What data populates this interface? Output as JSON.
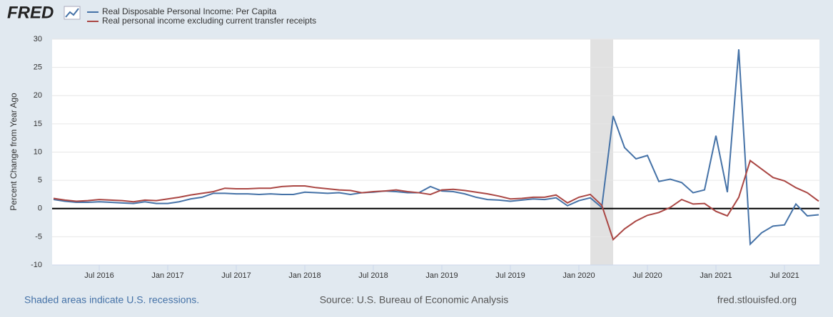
{
  "brand": "FRED",
  "chart_data": {
    "type": "line",
    "y_label": "Percent Change from Year Ago",
    "x": [
      "2016-03",
      "2016-04",
      "2016-05",
      "2016-06",
      "2016-07",
      "2016-08",
      "2016-09",
      "2016-10",
      "2016-11",
      "2016-12",
      "2017-01",
      "2017-02",
      "2017-03",
      "2017-04",
      "2017-05",
      "2017-06",
      "2017-07",
      "2017-08",
      "2017-09",
      "2017-10",
      "2017-11",
      "2017-12",
      "2018-01",
      "2018-02",
      "2018-03",
      "2018-04",
      "2018-05",
      "2018-06",
      "2018-07",
      "2018-08",
      "2018-09",
      "2018-10",
      "2018-11",
      "2018-12",
      "2019-01",
      "2019-02",
      "2019-03",
      "2019-04",
      "2019-05",
      "2019-06",
      "2019-07",
      "2019-08",
      "2019-09",
      "2019-10",
      "2019-11",
      "2019-12",
      "2020-01",
      "2020-02",
      "2020-03",
      "2020-04",
      "2020-05",
      "2020-06",
      "2020-07",
      "2020-08",
      "2020-09",
      "2020-10",
      "2020-11",
      "2020-12",
      "2021-01",
      "2021-02",
      "2021-03",
      "2021-04",
      "2021-05",
      "2021-06",
      "2021-07",
      "2021-08",
      "2021-09",
      "2021-10"
    ],
    "series": [
      {
        "name": "Real Disposable Personal Income: Per Capita",
        "color": "#4572a7",
        "values": [
          1.6,
          1.3,
          1.1,
          1.1,
          1.2,
          1.1,
          1.0,
          0.9,
          1.2,
          0.9,
          0.9,
          1.2,
          1.7,
          2.0,
          2.7,
          2.7,
          2.6,
          2.6,
          2.5,
          2.6,
          2.5,
          2.5,
          2.9,
          2.8,
          2.7,
          2.8,
          2.5,
          2.8,
          2.9,
          3.1,
          3.0,
          2.8,
          2.8,
          3.9,
          3.1,
          3.0,
          2.6,
          2.0,
          1.6,
          1.5,
          1.3,
          1.5,
          1.7,
          1.6,
          1.9,
          0.5,
          1.4,
          1.9,
          0.2,
          16.4,
          10.8,
          8.8,
          9.4,
          4.8,
          5.2,
          4.6,
          2.8,
          3.3,
          12.9,
          2.9,
          28.2,
          -6.3,
          -4.3,
          -3.1,
          -2.9,
          0.8,
          -1.3,
          -1.1
        ]
      },
      {
        "name": "Real personal income excluding current transfer receipts",
        "color": "#aa4643",
        "values": [
          1.8,
          1.5,
          1.3,
          1.4,
          1.6,
          1.5,
          1.4,
          1.2,
          1.5,
          1.4,
          1.7,
          2.0,
          2.4,
          2.7,
          3.0,
          3.6,
          3.5,
          3.5,
          3.6,
          3.6,
          3.9,
          4.0,
          4.0,
          3.7,
          3.5,
          3.3,
          3.2,
          2.8,
          3.0,
          3.1,
          3.3,
          3.0,
          2.8,
          2.5,
          3.3,
          3.4,
          3.2,
          2.9,
          2.6,
          2.2,
          1.7,
          1.8,
          2.0,
          2.0,
          2.4,
          1.0,
          2.0,
          2.5,
          0.6,
          -5.5,
          -3.6,
          -2.2,
          -1.2,
          -0.7,
          0.2,
          1.6,
          0.8,
          0.9,
          -0.5,
          -1.3,
          2.0,
          8.5,
          7.0,
          5.5,
          4.9,
          3.7,
          2.8,
          1.3
        ]
      }
    ],
    "recessions": [
      {
        "start": "2020-02",
        "end": "2020-04"
      }
    ],
    "xlim": [
      "2016-03",
      "2021-10"
    ],
    "xticks": [
      {
        "value": "2016-07",
        "label": "Jul 2016"
      },
      {
        "value": "2017-01",
        "label": "Jan 2017"
      },
      {
        "value": "2017-07",
        "label": "Jul 2017"
      },
      {
        "value": "2018-01",
        "label": "Jan 2018"
      },
      {
        "value": "2018-07",
        "label": "Jul 2018"
      },
      {
        "value": "2019-01",
        "label": "Jan 2019"
      },
      {
        "value": "2019-07",
        "label": "Jul 2019"
      },
      {
        "value": "2020-01",
        "label": "Jan 2020"
      },
      {
        "value": "2020-07",
        "label": "Jul 2020"
      },
      {
        "value": "2021-01",
        "label": "Jan 2021"
      },
      {
        "value": "2021-07",
        "label": "Jul 2021"
      }
    ],
    "ylim": [
      -10,
      30
    ],
    "yticks": [
      -10,
      -5,
      0,
      5,
      10,
      15,
      20,
      25,
      30
    ],
    "grid": true
  },
  "footer": {
    "left": "Shaded areas indicate U.S. recessions.",
    "center": "Source: U.S. Bureau of Economic Analysis",
    "right": "fred.stlouisfed.org"
  }
}
